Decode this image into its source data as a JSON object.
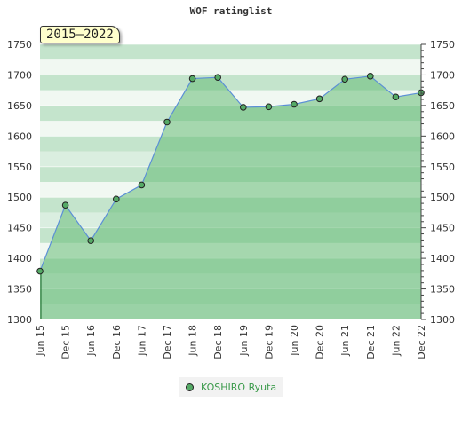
{
  "chart_data": {
    "type": "area",
    "title": "WOF ratinglist",
    "period_badge": "2015–2022",
    "categories": [
      "Jun 15",
      "Dec 15",
      "Jun 16",
      "Dec 16",
      "Jun 17",
      "Dec 17",
      "Jun 18",
      "Dec 18",
      "Jun 19",
      "Dec 19",
      "Jun 20",
      "Dec 20",
      "Jun 21",
      "Dec 21",
      "Jun 22",
      "Dec 22"
    ],
    "series": [
      {
        "name": "KOSHIRO Ryuta",
        "values": [
          1379,
          1487,
          1429,
          1497,
          1520,
          1623,
          1694,
          1696,
          1647,
          1648,
          1652,
          1661,
          1693,
          1698,
          1664,
          1671
        ]
      }
    ],
    "ylim": [
      1300,
      1750
    ],
    "yticks": [
      1300,
      1350,
      1400,
      1450,
      1500,
      1550,
      1600,
      1650,
      1700,
      1750
    ],
    "xlabel": "",
    "ylabel": "",
    "legend_position": "bottom-center",
    "colors": {
      "fill": "#66bb77",
      "line": "#5b8fd6",
      "marker": "#55aa66",
      "label": "#3a9a4a"
    }
  }
}
